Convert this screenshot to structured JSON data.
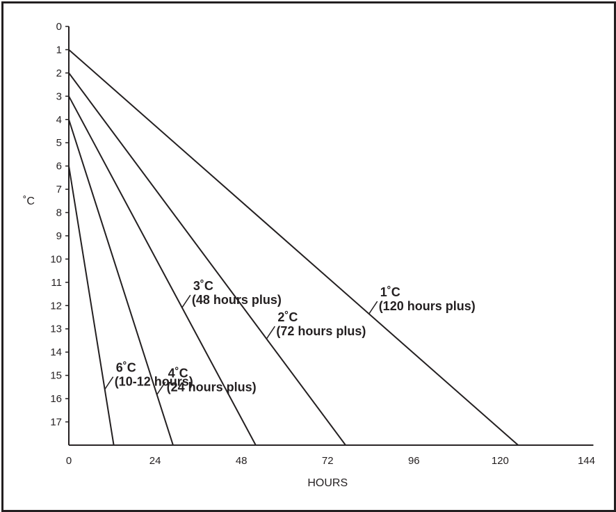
{
  "chart_data": {
    "type": "line",
    "xlabel": "HOURS",
    "ylabel": "˚C",
    "xlim": [
      0,
      144
    ],
    "ylim": [
      0,
      18
    ],
    "x_ticks": [
      "0",
      "24",
      "48",
      "72",
      "96",
      "120",
      "144"
    ],
    "y_ticks": [
      "0",
      "1",
      "2",
      "3",
      "4",
      "5",
      "6",
      "7",
      "8",
      "9",
      "10",
      "11",
      "12",
      "13",
      "14",
      "15",
      "16",
      "17"
    ],
    "grid": false,
    "legend": "none",
    "series": [
      {
        "temp": "1˚C",
        "duration": "(120 hours plus)",
        "x": [
          0,
          125
        ],
        "y": [
          1,
          18
        ],
        "labelAt": 90.5,
        "leaderFrom": 83.5
      },
      {
        "temp": "2˚C",
        "duration": "(72 hours plus)",
        "x": [
          0,
          77
        ],
        "y": [
          2,
          18
        ],
        "labelAt": 64,
        "leaderFrom": 55
      },
      {
        "temp": "3˚C",
        "duration": "(48 hours plus)",
        "x": [
          0,
          52
        ],
        "y": [
          3,
          18
        ],
        "labelAt": 38.5,
        "leaderFrom": 31.5
      },
      {
        "temp": "4˚C",
        "duration": "(24 hours plus)",
        "x": [
          0,
          29
        ],
        "y": [
          4,
          18
        ],
        "labelAt": 28,
        "leaderFrom": 24.5
      },
      {
        "temp": "6˚C",
        "duration": "(10-12 hours)",
        "x": [
          0,
          12.5
        ],
        "y": [
          6,
          18
        ],
        "labelAt": 16.1,
        "leaderFrom": 10
      }
    ]
  }
}
